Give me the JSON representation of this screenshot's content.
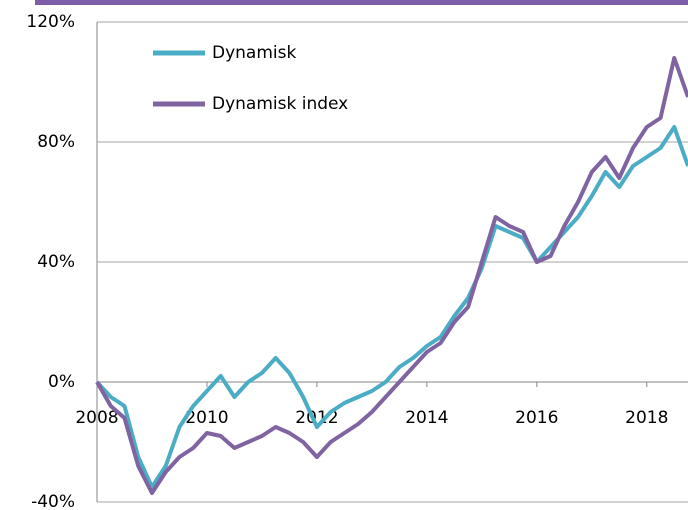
{
  "chart_data": {
    "type": "line",
    "x": [
      2008,
      2008.25,
      2008.5,
      2008.75,
      2009,
      2009.25,
      2009.5,
      2009.75,
      2010,
      2010.25,
      2010.5,
      2010.75,
      2011,
      2011.25,
      2011.5,
      2011.75,
      2012,
      2012.25,
      2012.5,
      2012.75,
      2013,
      2013.25,
      2013.5,
      2013.75,
      2014,
      2014.25,
      2014.5,
      2014.75,
      2015,
      2015.25,
      2015.5,
      2015.75,
      2016,
      2016.25,
      2016.5,
      2016.75,
      2017,
      2017.25,
      2017.5,
      2017.75,
      2018,
      2018.25,
      2018.5,
      2018.75
    ],
    "series": [
      {
        "name": "Dynamisk",
        "color": "#4bacc6",
        "values": [
          0,
          -5,
          -8,
          -25,
          -35,
          -28,
          -15,
          -8,
          -3,
          2,
          -5,
          0,
          3,
          8,
          3,
          -5,
          -15,
          -10,
          -7,
          -5,
          -3,
          0,
          5,
          8,
          12,
          15,
          22,
          28,
          38,
          52,
          50,
          48,
          40,
          45,
          50,
          55,
          62,
          70,
          65,
          72,
          75,
          78,
          85,
          72
        ]
      },
      {
        "name": "Dynamisk index",
        "color": "#8064a2",
        "values": [
          0,
          -8,
          -12,
          -28,
          -37,
          -30,
          -25,
          -22,
          -17,
          -18,
          -22,
          -20,
          -18,
          -15,
          -17,
          -20,
          -25,
          -20,
          -17,
          -14,
          -10,
          -5,
          0,
          5,
          10,
          13,
          20,
          25,
          40,
          55,
          52,
          50,
          40,
          42,
          52,
          60,
          70,
          75,
          68,
          78,
          85,
          88,
          108,
          95
        ]
      }
    ],
    "xlim": [
      2008,
      2018.75
    ],
    "xticks": [
      2008,
      2010,
      2012,
      2014,
      2016,
      2018
    ],
    "ylim": [
      -40,
      120
    ],
    "yticks": [
      {
        "value": -40,
        "label": "-40%"
      },
      {
        "value": 0,
        "label": "0%"
      },
      {
        "value": 40,
        "label": "40%"
      },
      {
        "value": 80,
        "label": "80%"
      },
      {
        "value": 120,
        "label": "120%"
      }
    ],
    "grid": true
  }
}
